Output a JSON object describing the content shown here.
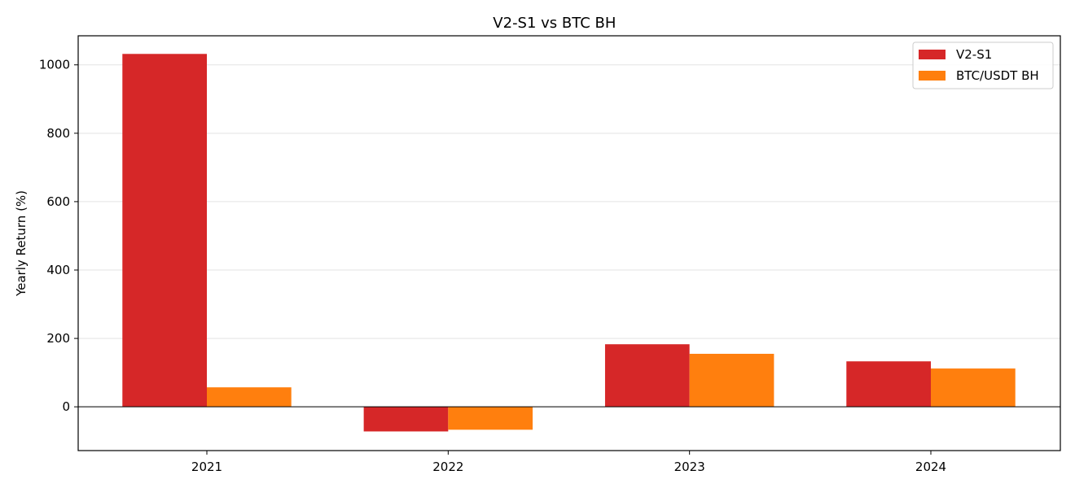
{
  "chart_data": {
    "type": "bar",
    "title": "V2-S1 vs BTC BH      ",
    "xlabel": "",
    "ylabel": "Yearly Return (%)",
    "categories": [
      "2021",
      "2022",
      "2023",
      "2024"
    ],
    "series": [
      {
        "name": "V2-S1",
        "color": "#d62728",
        "values": [
          1032,
          -72,
          183,
          133
        ]
      },
      {
        "name": "BTC/USDT BH",
        "color": "#ff7f0e",
        "values": [
          57,
          -67,
          155,
          112
        ]
      }
    ],
    "ylim": [
      -128,
      1085
    ],
    "yticks": [
      0,
      200,
      400,
      600,
      800,
      1000
    ],
    "grid": "horizontal",
    "legend_position": "top-right"
  }
}
